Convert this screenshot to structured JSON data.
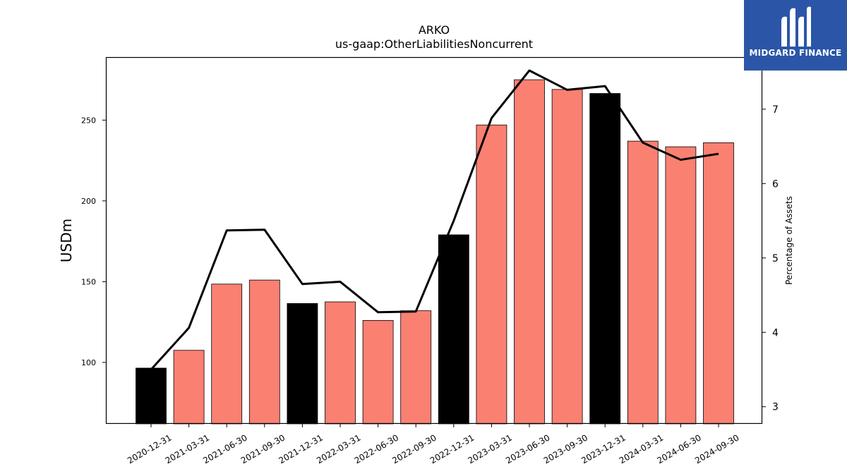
{
  "brand": {
    "name": "MIDGARD FINANCE",
    "icon": "midgard-mm-logo-icon",
    "background": "#2b56a8"
  },
  "chart_data": {
    "type": "bar",
    "title": "ARKO",
    "subtitle": "us-gaap:OtherLiabilitiesNoncurrent",
    "ylabel": "USDm",
    "y2label": "Percentage of Assets",
    "ylim": [
      62,
      289
    ],
    "y2lim": [
      2.77,
      7.7
    ],
    "yticks": [
      100,
      150,
      200,
      250
    ],
    "y2ticks": [
      3,
      4,
      5,
      6,
      7
    ],
    "grid": false,
    "categories": [
      "2020-12-31",
      "2021-03-31",
      "2021-06-30",
      "2021-09-30",
      "2021-12-31",
      "2022-03-31",
      "2022-06-30",
      "2022-09-30",
      "2022-12-31",
      "2023-03-31",
      "2023-06-30",
      "2023-09-30",
      "2023-12-31",
      "2024-03-31",
      "2024-06-30",
      "2024-09-30"
    ],
    "series": [
      {
        "type": "bar",
        "axis": "left",
        "values": [
          96.5,
          107.5,
          148.5,
          151,
          136.5,
          137.5,
          126,
          132,
          179,
          247,
          275,
          269,
          266.5,
          237,
          233.5,
          236
        ],
        "colors": [
          "#000000",
          "#fa8072",
          "#fa8072",
          "#fa8072",
          "#000000",
          "#fa8072",
          "#fa8072",
          "#fa8072",
          "#000000",
          "#fa8072",
          "#fa8072",
          "#fa8072",
          "#000000",
          "#fa8072",
          "#fa8072",
          "#fa8072"
        ]
      },
      {
        "type": "line",
        "axis": "right",
        "color": "#000000",
        "values": [
          3.5,
          4.06,
          5.37,
          5.38,
          4.65,
          4.68,
          4.27,
          4.28,
          5.5,
          6.88,
          7.52,
          7.26,
          7.31,
          6.55,
          6.32,
          6.4
        ]
      }
    ]
  }
}
